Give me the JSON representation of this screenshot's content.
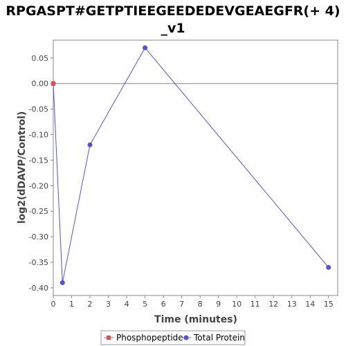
{
  "chart_data": {
    "type": "line",
    "title_line1": "RPGASPT#GETPTIEEGEEDEDEVGEAEGFR(+ 4)",
    "title_line2": "_v1",
    "xlabel": "Time (minutes)",
    "ylabel": "log2(dDAVP/Control)",
    "xlim": [
      0,
      15.5
    ],
    "ylim": [
      -0.415,
      0.085
    ],
    "x_ticks": [
      0,
      1,
      2,
      3,
      4,
      5,
      6,
      7,
      8,
      9,
      10,
      11,
      12,
      13,
      14,
      15
    ],
    "y_ticks": [
      0.05,
      0.0,
      -0.05,
      -0.1,
      -0.15,
      -0.2,
      -0.25,
      -0.3,
      -0.35,
      -0.4
    ],
    "y_tick_labels": [
      "0.05",
      "0.00",
      "-0.05",
      "-0.10",
      "-0.15",
      "-0.20",
      "-0.25",
      "-0.30",
      "-0.35",
      "-0.40"
    ],
    "grid": false,
    "legend_position": "bottom",
    "series": [
      {
        "name": "Phosphopeptide",
        "color": "#e05050",
        "marker": "square",
        "x": [
          0
        ],
        "y": [
          0.0
        ]
      },
      {
        "name": "Total Protein",
        "color": "#5050e0",
        "marker": "circle",
        "x": [
          0,
          0.5,
          2,
          5,
          15
        ],
        "y": [
          0.0,
          -0.39,
          -0.12,
          0.07,
          -0.36
        ]
      }
    ]
  }
}
